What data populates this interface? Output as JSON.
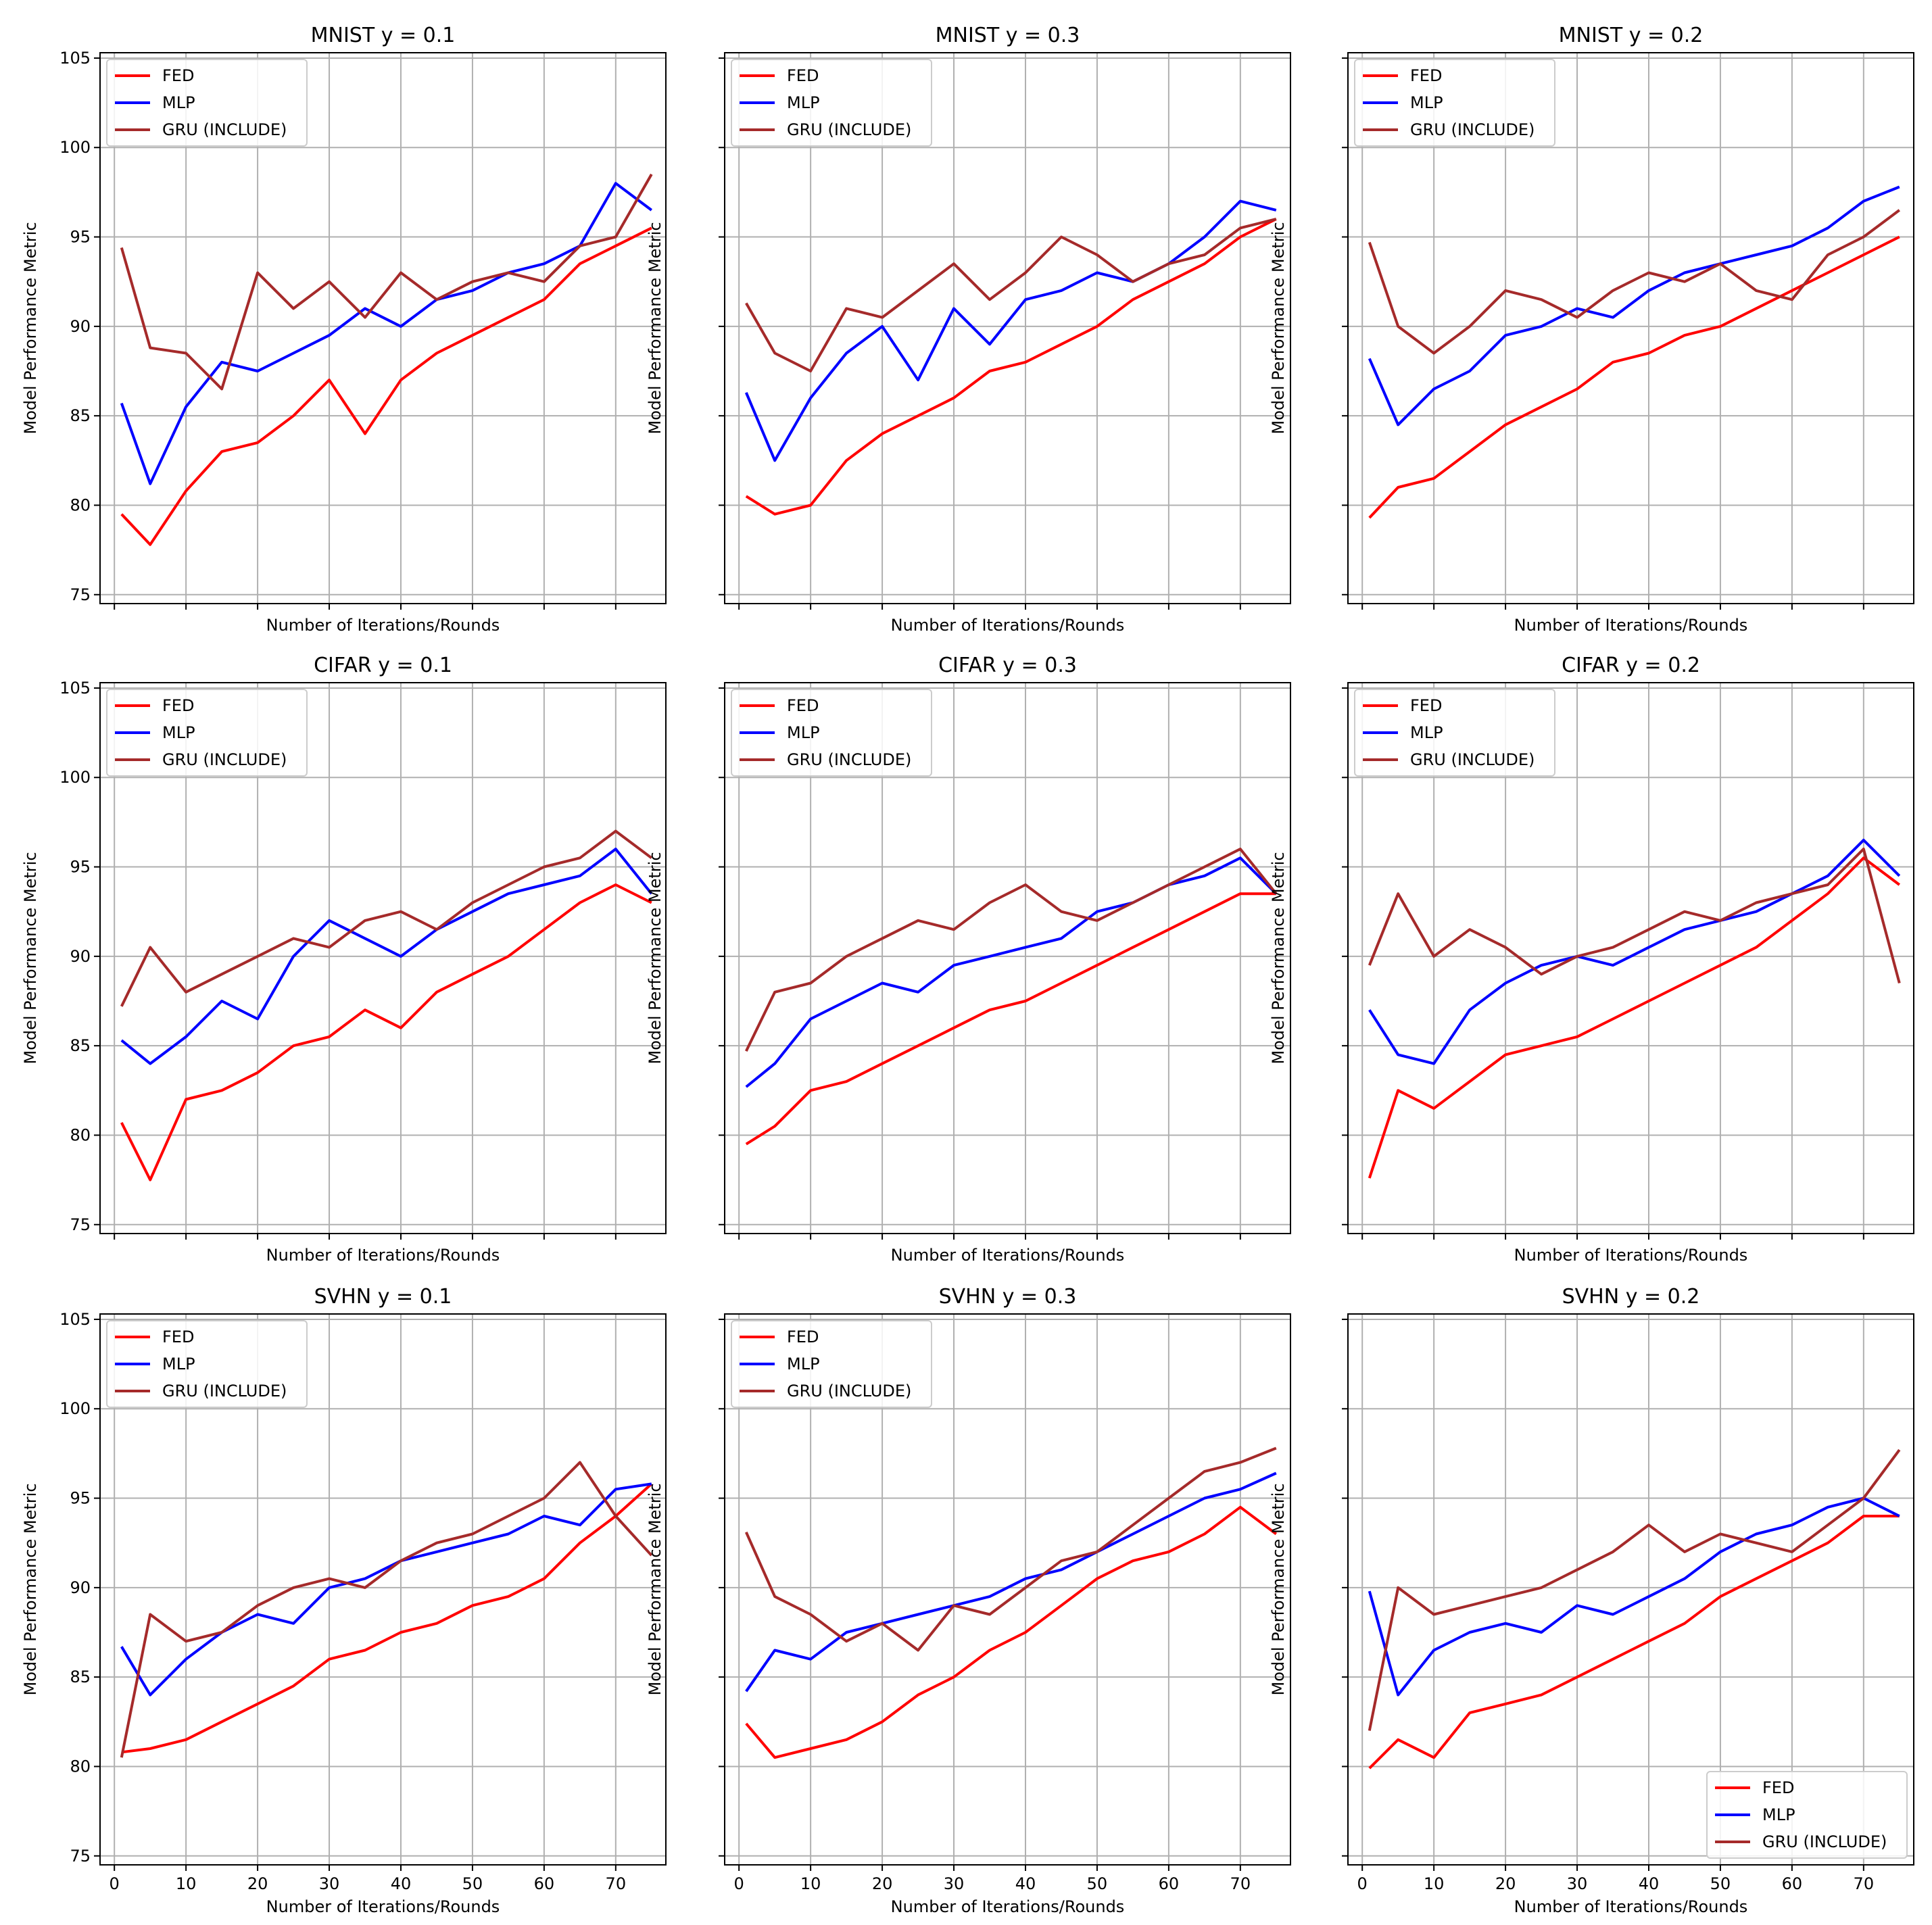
{
  "figure": {
    "ylabel": "Model Performance Metric",
    "xlabel": "Number of Iterations/Rounds",
    "yticks": [
      75,
      80,
      85,
      90,
      95,
      100,
      105
    ],
    "xticks": [
      0,
      10,
      20,
      30,
      40,
      50,
      60,
      70
    ],
    "series_colors": {
      "FED": "#ff0000",
      "MLP": "#0000ff",
      "GRU (INCLUDE)": "#a52a2a"
    },
    "grid_color": "#b0b0b0"
  },
  "chart_data": [
    {
      "type": "line",
      "title": "MNIST y = 0.1",
      "dataset": "MNIST",
      "gamma": 0.1,
      "xlabel": "Number of Iterations/Rounds",
      "ylabel": "Model Performance Metric",
      "xlim": [
        -2,
        77
      ],
      "ylim": [
        74.5,
        105.3
      ],
      "legend": "top-left",
      "grid": true,
      "x": [
        1,
        5,
        10,
        15,
        20,
        25,
        30,
        35,
        40,
        45,
        50,
        55,
        60,
        65,
        70,
        75
      ],
      "series": [
        {
          "name": "FED",
          "values": [
            79.5,
            77.8,
            80.8,
            83.0,
            83.5,
            85.0,
            87.0,
            84.0,
            87.0,
            88.5,
            89.5,
            90.5,
            91.5,
            93.5,
            94.5,
            95.5
          ]
        },
        {
          "name": "MLP",
          "values": [
            85.7,
            81.2,
            85.5,
            88.0,
            87.5,
            88.5,
            89.5,
            91.0,
            90.0,
            91.5,
            92.0,
            93.0,
            93.5,
            94.5,
            98.0,
            96.5
          ]
        },
        {
          "name": "GRU (INCLUDE)",
          "values": [
            94.4,
            88.8,
            88.5,
            86.5,
            93.0,
            91.0,
            92.5,
            90.5,
            93.0,
            91.5,
            92.5,
            93.0,
            92.5,
            94.5,
            95.0,
            98.5
          ]
        }
      ]
    },
    {
      "type": "line",
      "title": "MNIST y = 0.3",
      "dataset": "MNIST",
      "gamma": 0.3,
      "xlabel": "Number of Iterations/Rounds",
      "ylabel": "Model Performance Metric",
      "xlim": [
        -2,
        77
      ],
      "ylim": [
        74.5,
        105.3
      ],
      "legend": "top-left",
      "grid": true,
      "x": [
        1,
        5,
        10,
        15,
        20,
        25,
        30,
        35,
        40,
        45,
        50,
        55,
        60,
        65,
        70,
        75
      ],
      "series": [
        {
          "name": "FED",
          "values": [
            80.5,
            79.5,
            80.0,
            82.5,
            84.0,
            85.0,
            86.0,
            87.5,
            88.0,
            89.0,
            90.0,
            91.5,
            92.5,
            93.5,
            95.0,
            96.0
          ]
        },
        {
          "name": "MLP",
          "values": [
            86.3,
            82.5,
            86.0,
            88.5,
            90.0,
            87.0,
            91.0,
            89.0,
            91.5,
            92.0,
            93.0,
            92.5,
            93.5,
            95.0,
            97.0,
            96.5
          ]
        },
        {
          "name": "GRU (INCLUDE)",
          "values": [
            91.3,
            88.5,
            87.5,
            91.0,
            90.5,
            92.0,
            93.5,
            91.5,
            93.0,
            95.0,
            94.0,
            92.5,
            93.5,
            94.0,
            95.5,
            96.0
          ]
        }
      ]
    },
    {
      "type": "line",
      "title": "MNIST y = 0.2",
      "dataset": "MNIST",
      "gamma": 0.2,
      "xlabel": "Number of Iterations/Rounds",
      "ylabel": "Model Performance Metric",
      "xlim": [
        -2,
        77
      ],
      "ylim": [
        74.5,
        105.3
      ],
      "legend": "top-left",
      "grid": true,
      "x": [
        1,
        5,
        10,
        15,
        20,
        25,
        30,
        35,
        40,
        45,
        50,
        55,
        60,
        65,
        70,
        75
      ],
      "series": [
        {
          "name": "FED",
          "values": [
            79.3,
            81.0,
            81.5,
            83.0,
            84.5,
            85.5,
            86.5,
            88.0,
            88.5,
            89.5,
            90.0,
            91.0,
            92.0,
            93.0,
            94.0,
            95.0
          ]
        },
        {
          "name": "MLP",
          "values": [
            88.2,
            84.5,
            86.5,
            87.5,
            89.5,
            90.0,
            91.0,
            90.5,
            92.0,
            93.0,
            93.5,
            94.0,
            94.5,
            95.5,
            97.0,
            97.8
          ]
        },
        {
          "name": "GRU (INCLUDE)",
          "values": [
            94.7,
            90.0,
            88.5,
            90.0,
            92.0,
            91.5,
            90.5,
            92.0,
            93.0,
            92.5,
            93.5,
            92.0,
            91.5,
            94.0,
            95.0,
            96.5
          ]
        }
      ]
    },
    {
      "type": "line",
      "title": "CIFAR y = 0.1",
      "dataset": "CIFAR",
      "gamma": 0.1,
      "xlabel": "Number of Iterations/Rounds",
      "ylabel": "Model Performance Metric",
      "xlim": [
        -2,
        77
      ],
      "ylim": [
        74.5,
        105.3
      ],
      "legend": "top-left",
      "grid": true,
      "x": [
        1,
        5,
        10,
        15,
        20,
        25,
        30,
        35,
        40,
        45,
        50,
        55,
        60,
        65,
        70,
        75
      ],
      "series": [
        {
          "name": "FED",
          "values": [
            80.7,
            77.5,
            82.0,
            82.5,
            83.5,
            85.0,
            85.5,
            87.0,
            86.0,
            88.0,
            89.0,
            90.0,
            91.5,
            93.0,
            94.0,
            93.0
          ]
        },
        {
          "name": "MLP",
          "values": [
            85.3,
            84.0,
            85.5,
            87.5,
            86.5,
            90.0,
            92.0,
            91.0,
            90.0,
            91.5,
            92.5,
            93.5,
            94.0,
            94.5,
            96.0,
            93.5
          ]
        },
        {
          "name": "GRU (INCLUDE)",
          "values": [
            87.2,
            90.5,
            88.0,
            89.0,
            90.0,
            91.0,
            90.5,
            92.0,
            92.5,
            91.5,
            93.0,
            94.0,
            95.0,
            95.5,
            97.0,
            95.5
          ]
        }
      ]
    },
    {
      "type": "line",
      "title": "CIFAR y = 0.3",
      "dataset": "CIFAR",
      "gamma": 0.3,
      "xlabel": "Number of Iterations/Rounds",
      "ylabel": "Model Performance Metric",
      "xlim": [
        -2,
        77
      ],
      "ylim": [
        74.5,
        105.3
      ],
      "legend": "top-left",
      "grid": true,
      "x": [
        1,
        5,
        10,
        15,
        20,
        25,
        30,
        35,
        40,
        45,
        50,
        55,
        60,
        65,
        70,
        75
      ],
      "series": [
        {
          "name": "FED",
          "values": [
            79.5,
            80.5,
            82.5,
            83.0,
            84.0,
            85.0,
            86.0,
            87.0,
            87.5,
            88.5,
            89.5,
            90.5,
            91.5,
            92.5,
            93.5,
            93.5
          ]
        },
        {
          "name": "MLP",
          "values": [
            82.7,
            84.0,
            86.5,
            87.5,
            88.5,
            88.0,
            89.5,
            90.0,
            90.5,
            91.0,
            92.5,
            93.0,
            94.0,
            94.5,
            95.5,
            93.5
          ]
        },
        {
          "name": "GRU (INCLUDE)",
          "values": [
            84.7,
            88.0,
            88.5,
            90.0,
            91.0,
            92.0,
            91.5,
            93.0,
            94.0,
            92.5,
            92.0,
            93.0,
            94.0,
            95.0,
            96.0,
            93.5
          ]
        }
      ]
    },
    {
      "type": "line",
      "title": "CIFAR y = 0.2",
      "dataset": "CIFAR",
      "gamma": 0.2,
      "xlabel": "Number of Iterations/Rounds",
      "ylabel": "Model Performance Metric",
      "xlim": [
        -2,
        77
      ],
      "ylim": [
        74.5,
        105.3
      ],
      "legend": "top-left",
      "grid": true,
      "x": [
        1,
        5,
        10,
        15,
        20,
        25,
        30,
        35,
        40,
        45,
        50,
        55,
        60,
        65,
        70,
        75
      ],
      "series": [
        {
          "name": "FED",
          "values": [
            77.6,
            82.5,
            81.5,
            83.0,
            84.5,
            85.0,
            85.5,
            86.5,
            87.5,
            88.5,
            89.5,
            90.5,
            92.0,
            93.5,
            95.5,
            94.0
          ]
        },
        {
          "name": "MLP",
          "values": [
            87.0,
            84.5,
            84.0,
            87.0,
            88.5,
            89.5,
            90.0,
            89.5,
            90.5,
            91.5,
            92.0,
            92.5,
            93.5,
            94.5,
            96.5,
            94.5
          ]
        },
        {
          "name": "GRU (INCLUDE)",
          "values": [
            89.5,
            93.5,
            90.0,
            91.5,
            90.5,
            89.0,
            90.0,
            90.5,
            91.5,
            92.5,
            92.0,
            93.0,
            93.5,
            94.0,
            96.0,
            88.5
          ]
        }
      ]
    },
    {
      "type": "line",
      "title": "SVHN y = 0.1",
      "dataset": "SVHN",
      "gamma": 0.1,
      "xlabel": "Number of Iterations/Rounds",
      "ylabel": "Model Performance Metric",
      "xlim": [
        -2,
        77
      ],
      "ylim": [
        74.5,
        105.3
      ],
      "legend": "top-left",
      "grid": true,
      "x": [
        1,
        5,
        10,
        15,
        20,
        25,
        30,
        35,
        40,
        45,
        50,
        55,
        60,
        65,
        70,
        75
      ],
      "series": [
        {
          "name": "FED",
          "values": [
            80.8,
            81.0,
            81.5,
            82.5,
            83.5,
            84.5,
            86.0,
            86.5,
            87.5,
            88.0,
            89.0,
            89.5,
            90.5,
            92.5,
            94.0,
            95.8
          ]
        },
        {
          "name": "MLP",
          "values": [
            86.7,
            84.0,
            86.0,
            87.5,
            88.5,
            88.0,
            90.0,
            90.5,
            91.5,
            92.0,
            92.5,
            93.0,
            94.0,
            93.5,
            95.5,
            95.8
          ]
        },
        {
          "name": "GRU (INCLUDE)",
          "values": [
            80.5,
            88.5,
            87.0,
            87.5,
            89.0,
            90.0,
            90.5,
            90.0,
            91.5,
            92.5,
            93.0,
            94.0,
            95.0,
            97.0,
            94.0,
            91.8
          ]
        }
      ]
    },
    {
      "type": "line",
      "title": "SVHN y = 0.3",
      "dataset": "SVHN",
      "gamma": 0.3,
      "xlabel": "Number of Iterations/Rounds",
      "ylabel": "Model Performance Metric",
      "xlim": [
        -2,
        77
      ],
      "ylim": [
        74.5,
        105.3
      ],
      "legend": "top-left",
      "grid": true,
      "x": [
        1,
        5,
        10,
        15,
        20,
        25,
        30,
        35,
        40,
        45,
        50,
        55,
        60,
        65,
        70,
        75
      ],
      "series": [
        {
          "name": "FED",
          "values": [
            82.4,
            80.5,
            81.0,
            81.5,
            82.5,
            84.0,
            85.0,
            86.5,
            87.5,
            89.0,
            90.5,
            91.5,
            92.0,
            93.0,
            94.5,
            93.0
          ]
        },
        {
          "name": "MLP",
          "values": [
            84.2,
            86.5,
            86.0,
            87.5,
            88.0,
            88.5,
            89.0,
            89.5,
            90.5,
            91.0,
            92.0,
            93.0,
            94.0,
            95.0,
            95.5,
            96.4
          ]
        },
        {
          "name": "GRU (INCLUDE)",
          "values": [
            93.1,
            89.5,
            88.5,
            87.0,
            88.0,
            86.5,
            89.0,
            88.5,
            90.0,
            91.5,
            92.0,
            93.5,
            95.0,
            96.5,
            97.0,
            97.8
          ]
        }
      ]
    },
    {
      "type": "line",
      "title": "SVHN y = 0.2",
      "dataset": "SVHN",
      "gamma": 0.2,
      "xlabel": "Number of Iterations/Rounds",
      "ylabel": "Model Performance Metric",
      "xlim": [
        -2,
        77
      ],
      "ylim": [
        74.5,
        105.3
      ],
      "legend": "bottom-right",
      "grid": true,
      "x": [
        1,
        5,
        10,
        15,
        20,
        25,
        30,
        35,
        40,
        45,
        50,
        55,
        60,
        65,
        70,
        75
      ],
      "series": [
        {
          "name": "FED",
          "values": [
            79.9,
            81.5,
            80.5,
            83.0,
            83.5,
            84.0,
            85.0,
            86.0,
            87.0,
            88.0,
            89.5,
            90.5,
            91.5,
            92.5,
            94.0,
            94.0
          ]
        },
        {
          "name": "MLP",
          "values": [
            89.8,
            84.0,
            86.5,
            87.5,
            88.0,
            87.5,
            89.0,
            88.5,
            89.5,
            90.5,
            92.0,
            93.0,
            93.5,
            94.5,
            95.0,
            94.0
          ]
        },
        {
          "name": "GRU (INCLUDE)",
          "values": [
            82.0,
            90.0,
            88.5,
            89.0,
            89.5,
            90.0,
            91.0,
            92.0,
            93.5,
            92.0,
            93.0,
            92.5,
            92.0,
            93.5,
            95.0,
            97.7
          ]
        }
      ]
    }
  ]
}
